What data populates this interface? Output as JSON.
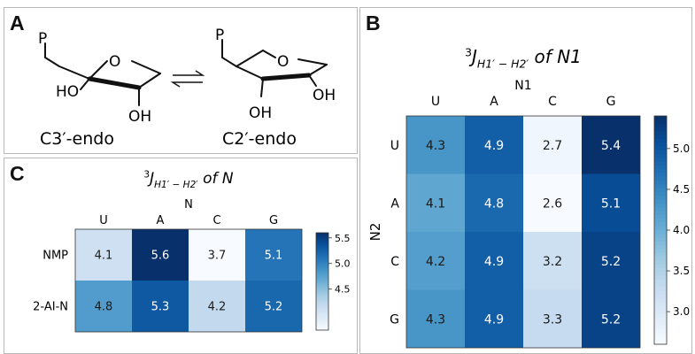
{
  "panels": {
    "a": {
      "letter": "A",
      "left_substituent": "P",
      "left_hydroxyl_1": "HO",
      "left_hydroxyl_2": "OH",
      "left_ring_oxygen": "O",
      "left_label": "C3′-endo",
      "right_substituent": "P",
      "right_hydroxyl_1": "OH",
      "right_hydroxyl_2": "OH",
      "right_ring_oxygen": "O",
      "right_label": "C2′-endo"
    },
    "b": {
      "letter": "B"
    },
    "c": {
      "letter": "C"
    }
  },
  "chart_data": [
    {
      "id": "B",
      "type": "heatmap",
      "title_prefix": "3",
      "title_main": "J",
      "title_sub": "H1′ − H2′",
      "title_suffix": "of N1",
      "xlabel": "N1",
      "ylabel": "N2",
      "columns": [
        "U",
        "A",
        "C",
        "G"
      ],
      "rows": [
        "U",
        "A",
        "C",
        "G"
      ],
      "values": [
        [
          4.3,
          4.9,
          2.7,
          5.4
        ],
        [
          4.1,
          4.8,
          2.6,
          5.1
        ],
        [
          4.2,
          4.9,
          3.2,
          5.2
        ],
        [
          4.3,
          4.9,
          3.3,
          5.2
        ]
      ],
      "cell_labels": [
        [
          "4.3",
          "4.9",
          "2.7",
          "5.4"
        ],
        [
          "4.1",
          "4.8",
          "2.6",
          "5.1"
        ],
        [
          "4.2",
          "4.9",
          "3.2",
          "5.2"
        ],
        [
          "4.3",
          "4.9",
          "3.3",
          "5.2"
        ]
      ],
      "colormap": "Blues",
      "vmin": 2.6,
      "vmax": 5.4,
      "colorbar_ticks": [
        3.0,
        3.5,
        4.0,
        4.5,
        5.0
      ],
      "colorbar_tick_labels": [
        "3.0",
        "3.5",
        "4.0",
        "4.5",
        "5.0"
      ]
    },
    {
      "id": "C",
      "type": "heatmap",
      "title_prefix": "3",
      "title_main": "J",
      "title_sub": "H1′ − H2′",
      "title_suffix": "of N",
      "xlabel": "N",
      "ylabel": "",
      "columns": [
        "U",
        "A",
        "C",
        "G"
      ],
      "rows": [
        "NMP",
        "2-AI-N"
      ],
      "values": [
        [
          4.1,
          5.6,
          3.7,
          5.1
        ],
        [
          4.8,
          5.3,
          4.2,
          5.2
        ]
      ],
      "cell_labels": [
        [
          "4.1",
          "5.6",
          "3.7",
          "5.1"
        ],
        [
          "4.8",
          "5.3",
          "4.2",
          "5.2"
        ]
      ],
      "colormap": "Blues",
      "vmin": 3.7,
      "vmax": 5.6,
      "colorbar_ticks": [
        4.5,
        5.0,
        5.5
      ],
      "colorbar_tick_labels": [
        "4.5",
        "5.0",
        "5.5"
      ]
    }
  ]
}
